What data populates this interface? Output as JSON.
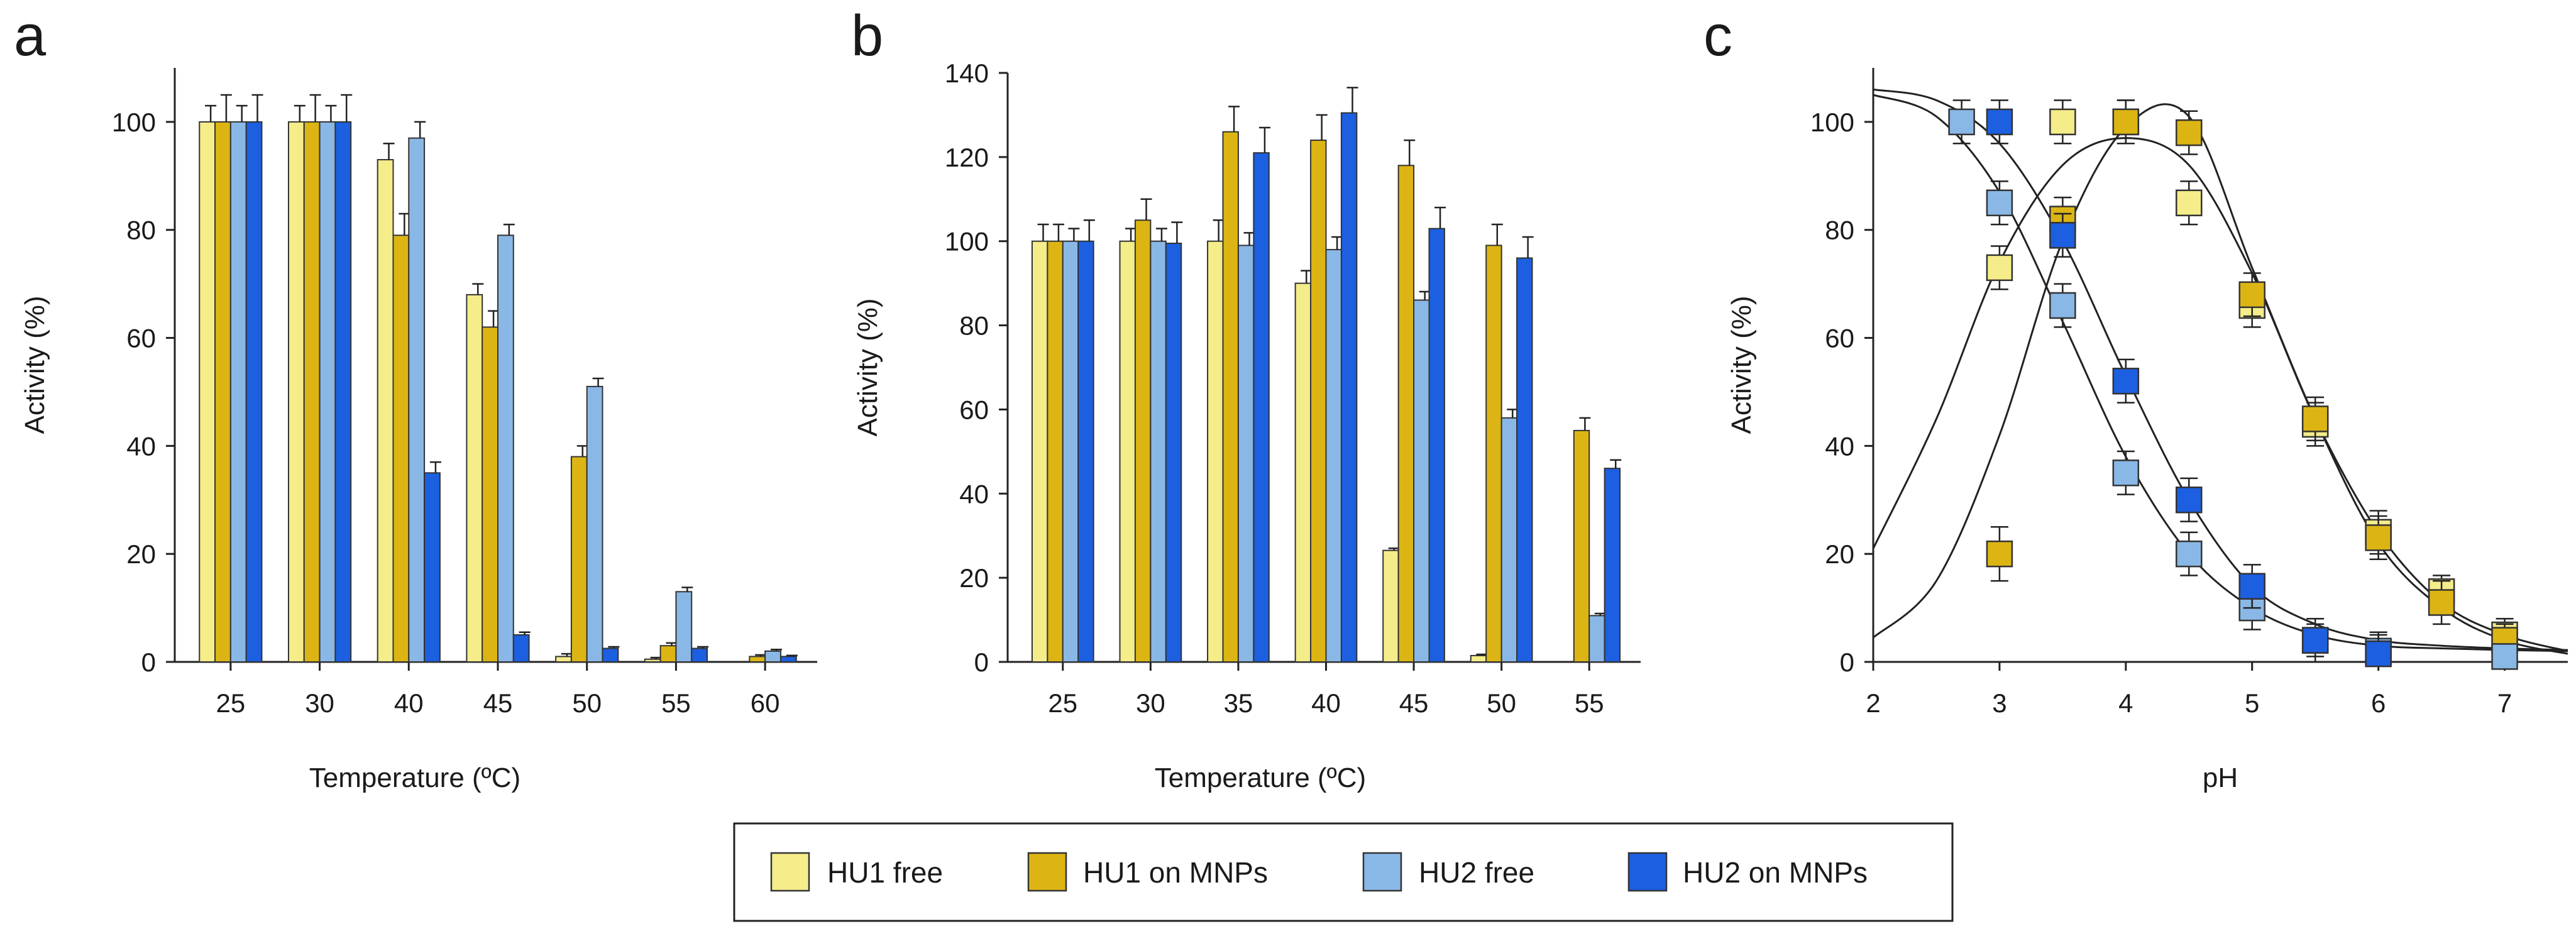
{
  "colors": {
    "HU1 free": "#f5ec8a",
    "HU1 on MNPs": "#dcb514",
    "HU2 free": "#8ab8e6",
    "HU2 on MNPs": "#1c5fe0"
  },
  "legend": {
    "entries": [
      "HU1 free",
      "HU1 on MNPs",
      "HU2 free",
      "HU2 on MNPs"
    ]
  },
  "chart_data": [
    {
      "panel": "a",
      "type": "bar",
      "xlabel": "Temperature (ºC)",
      "ylabel": "Activity (%)",
      "ylim": [
        0,
        110
      ],
      "yticks": [
        0,
        20,
        40,
        60,
        80,
        100
      ],
      "categories": [
        "25",
        "30",
        "40",
        "45",
        "50",
        "55",
        "60"
      ],
      "series": [
        {
          "name": "HU1 free",
          "values": [
            100,
            100,
            93,
            68,
            1,
            0.5,
            0
          ],
          "errors": [
            3,
            3,
            3,
            2,
            0.5,
            0.3,
            0
          ]
        },
        {
          "name": "HU1 on MNPs",
          "values": [
            100,
            100,
            79,
            62,
            38,
            3,
            1
          ],
          "errors": [
            5,
            5,
            4,
            3,
            2,
            0.5,
            0.3
          ]
        },
        {
          "name": "HU2 free",
          "values": [
            100,
            100,
            97,
            79,
            51,
            13,
            2
          ],
          "errors": [
            3,
            3,
            3,
            2,
            1.5,
            0.8,
            0.3
          ]
        },
        {
          "name": "HU2 on MNPs",
          "values": [
            100,
            100,
            35,
            5,
            2.5,
            2.5,
            1
          ],
          "errors": [
            5,
            5,
            2,
            0.5,
            0.3,
            0.3,
            0.2
          ]
        }
      ]
    },
    {
      "panel": "b",
      "type": "bar",
      "xlabel": "Temperature (ºC)",
      "ylabel": "Activity (%)",
      "ylim": [
        0,
        140
      ],
      "yticks": [
        0,
        20,
        40,
        60,
        80,
        100,
        120,
        140
      ],
      "categories": [
        "25",
        "30",
        "35",
        "40",
        "45",
        "50",
        "55"
      ],
      "series": [
        {
          "name": "HU1 free",
          "values": [
            100,
            100,
            100,
            90,
            26.5,
            1.5,
            0
          ],
          "errors": [
            4,
            3,
            5,
            3,
            0.5,
            0.3,
            0
          ]
        },
        {
          "name": "HU1 on MNPs",
          "values": [
            100,
            105,
            126,
            124,
            118,
            99,
            55
          ],
          "errors": [
            4,
            5,
            6,
            6,
            6,
            5,
            3
          ]
        },
        {
          "name": "HU2 free",
          "values": [
            100,
            100,
            99,
            98,
            86,
            58,
            11
          ],
          "errors": [
            3,
            3,
            3,
            3,
            2,
            2,
            0.5
          ]
        },
        {
          "name": "HU2 on MNPs",
          "values": [
            100,
            99.5,
            121,
            130.5,
            103,
            96,
            46
          ],
          "errors": [
            5,
            5,
            6,
            6,
            5,
            5,
            2
          ]
        }
      ]
    },
    {
      "panel": "c",
      "type": "scatter",
      "xlabel": "pH",
      "ylabel": "Activity (%)",
      "xlim": [
        2,
        7.5
      ],
      "ylim": [
        0,
        110
      ],
      "xticks": [
        2,
        3,
        4,
        5,
        6,
        7
      ],
      "yticks": [
        0,
        20,
        40,
        60,
        80,
        100
      ],
      "series": [
        {
          "name": "HU1 free",
          "x": [
            3,
            3.5,
            4,
            4.5,
            5,
            5.5,
            6,
            6.5,
            7
          ],
          "y": [
            73,
            100,
            100,
            85,
            66,
            44,
            24,
            13,
            5
          ],
          "errors": [
            4,
            4,
            4,
            4,
            4,
            4,
            4,
            3,
            3
          ]
        },
        {
          "name": "HU1 on MNPs",
          "x": [
            3,
            3.5,
            4,
            4.5,
            5,
            5.5,
            6,
            6.5,
            7
          ],
          "y": [
            20,
            82,
            100,
            98,
            68,
            45,
            23,
            11,
            4
          ],
          "errors": [
            5,
            4,
            4,
            4,
            4,
            4,
            4,
            4,
            3
          ]
        },
        {
          "name": "HU2 free",
          "x": [
            2.7,
            3,
            3.5,
            4,
            4.5,
            5,
            5.5,
            6,
            7
          ],
          "y": [
            100,
            85,
            66,
            35,
            20,
            10,
            4,
            2,
            1
          ],
          "errors": [
            4,
            4,
            4,
            4,
            4,
            4,
            3,
            3,
            2
          ]
        },
        {
          "name": "HU2 on MNPs",
          "x": [
            3,
            3.5,
            4,
            4.5,
            5,
            5.5,
            6
          ],
          "y": [
            100,
            79,
            52,
            30,
            14,
            4,
            1.5
          ],
          "errors": [
            4,
            4,
            4,
            4,
            4,
            4,
            4
          ]
        }
      ],
      "fits": [
        {
          "name": "HU1 free",
          "kind": "bell",
          "x": [
            2,
            2.5,
            3,
            3.5,
            4,
            4.5,
            5,
            5.5,
            6,
            6.5,
            7,
            7.5
          ],
          "y": [
            21,
            45,
            74,
            92,
            97,
            92,
            72,
            45,
            24,
            11,
            5,
            2
          ]
        },
        {
          "name": "HU1 on MNPs",
          "kind": "bell",
          "x": [
            2,
            2.5,
            3,
            3.5,
            4,
            4.5,
            5,
            5.5,
            6,
            6.5,
            7,
            7.5
          ],
          "y": [
            4.5,
            15,
            42,
            78,
            99,
            101,
            73,
            45,
            22,
            10,
            4,
            1.5
          ]
        },
        {
          "name": "HU2 free",
          "kind": "sigmoid",
          "x": [
            2,
            2.5,
            3,
            3.5,
            4,
            4.5,
            5,
            5.5,
            6,
            6.5,
            7,
            7.5
          ],
          "y": [
            105,
            101,
            87,
            63,
            38,
            20,
            10,
            5,
            3,
            2.5,
            2.2,
            2
          ]
        },
        {
          "name": "HU2 on MNPs",
          "kind": "sigmoid",
          "x": [
            2,
            2.5,
            3,
            3.5,
            4,
            4.5,
            5,
            5.5,
            6,
            6.5,
            7,
            7.5
          ],
          "y": [
            106,
            104,
            96,
            78,
            53,
            30,
            14,
            7,
            4,
            3,
            2.5,
            2.2
          ]
        }
      ]
    }
  ]
}
